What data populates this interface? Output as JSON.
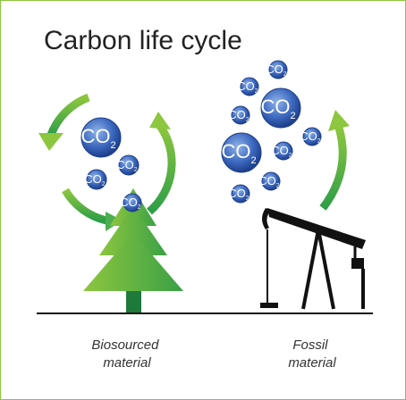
{
  "header": {
    "title": "Carbon life cycle"
  },
  "bubbles": [
    {
      "main": "CO",
      "sub": "2"
    },
    {
      "main": "CO",
      "sub": "2"
    },
    {
      "main": "CO",
      "sub": "2"
    },
    {
      "main": "CO",
      "sub": "2"
    },
    {
      "main": "CO",
      "sub": "2"
    },
    {
      "main": "CO",
      "sub": "2"
    },
    {
      "main": "CO",
      "sub": "2"
    },
    {
      "main": "CO",
      "sub": "2"
    },
    {
      "main": "CO",
      "sub": "2"
    },
    {
      "main": "CO",
      "sub": "2"
    },
    {
      "main": "CO",
      "sub": "2"
    },
    {
      "main": "CO",
      "sub": "2"
    },
    {
      "main": "CO",
      "sub": "2"
    }
  ],
  "captions": [
    [
      "Biosourced",
      "material"
    ],
    [
      "Fossil",
      "material"
    ]
  ]
}
